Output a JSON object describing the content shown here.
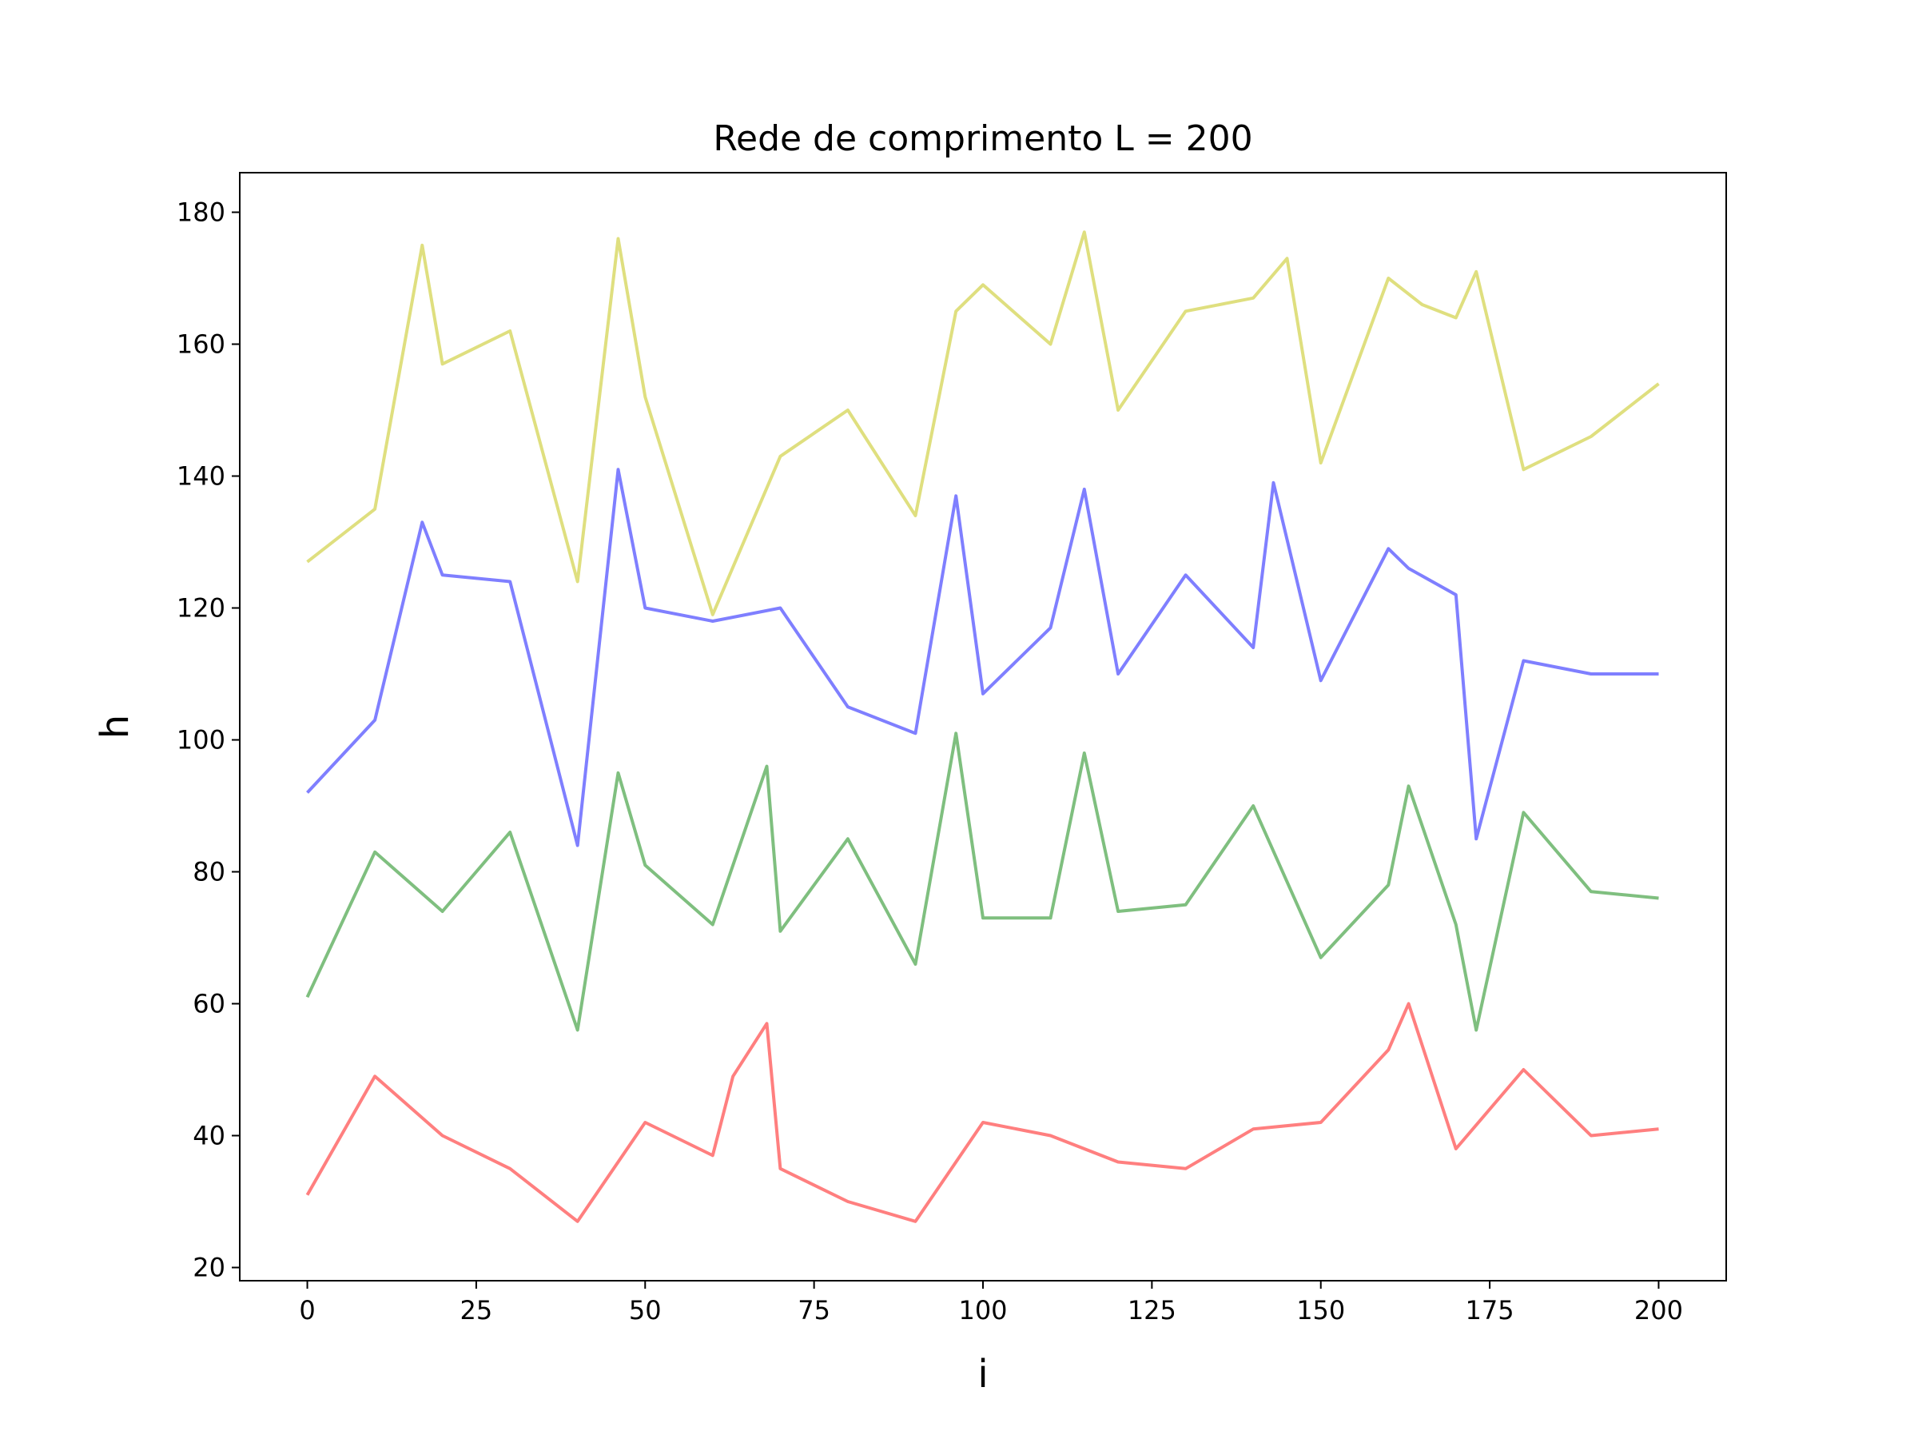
{
  "chart_data": {
    "type": "line",
    "title": "Rede de comprimento L = 200",
    "xlabel": "i",
    "ylabel": "h",
    "xlim": [
      -10,
      210
    ],
    "ylim": [
      18,
      186
    ],
    "xticks": [
      0,
      25,
      50,
      75,
      100,
      125,
      150,
      175,
      200
    ],
    "yticks": [
      20,
      40,
      60,
      80,
      100,
      120,
      140,
      160,
      180
    ],
    "grid": false,
    "series": [
      {
        "color": "#ff7f7f",
        "x": [
          0,
          10,
          20,
          30,
          40,
          50,
          60,
          63,
          68,
          70,
          80,
          90,
          100,
          110,
          120,
          130,
          140,
          150,
          160,
          163,
          170,
          180,
          190,
          200
        ],
        "values": [
          31,
          49,
          40,
          35,
          27,
          42,
          37,
          49,
          57,
          35,
          30,
          27,
          42,
          40,
          36,
          35,
          41,
          42,
          53,
          60,
          38,
          50,
          40,
          41
        ]
      },
      {
        "color": "#7fbf7f",
        "x": [
          0,
          10,
          20,
          30,
          40,
          46,
          50,
          60,
          68,
          70,
          80,
          90,
          96,
          100,
          110,
          115,
          120,
          130,
          140,
          150,
          160,
          163,
          170,
          173,
          180,
          190,
          200
        ],
        "values": [
          61,
          83,
          74,
          86,
          56,
          95,
          81,
          72,
          96,
          71,
          85,
          66,
          101,
          73,
          73,
          98,
          74,
          75,
          90,
          67,
          78,
          93,
          72,
          56,
          89,
          77,
          76
        ]
      },
      {
        "color": "#7f7fff",
        "x": [
          0,
          10,
          17,
          20,
          30,
          40,
          46,
          50,
          60,
          70,
          80,
          90,
          96,
          100,
          110,
          115,
          120,
          130,
          140,
          143,
          150,
          160,
          163,
          170,
          173,
          180,
          190,
          200
        ],
        "values": [
          92,
          103,
          133,
          125,
          124,
          84,
          141,
          120,
          118,
          120,
          105,
          101,
          137,
          107,
          117,
          138,
          110,
          125,
          114,
          139,
          109,
          129,
          126,
          122,
          85,
          112,
          110,
          110
        ]
      },
      {
        "color": "#dfdf7f",
        "x": [
          0,
          10,
          17,
          20,
          30,
          40,
          46,
          50,
          60,
          70,
          80,
          90,
          96,
          100,
          110,
          115,
          120,
          130,
          140,
          145,
          150,
          160,
          165,
          170,
          173,
          180,
          190,
          200
        ],
        "values": [
          127,
          135,
          175,
          157,
          162,
          124,
          176,
          152,
          119,
          143,
          150,
          134,
          165,
          169,
          160,
          177,
          150,
          165,
          167,
          173,
          142,
          170,
          166,
          164,
          171,
          141,
          146,
          154
        ]
      }
    ]
  }
}
